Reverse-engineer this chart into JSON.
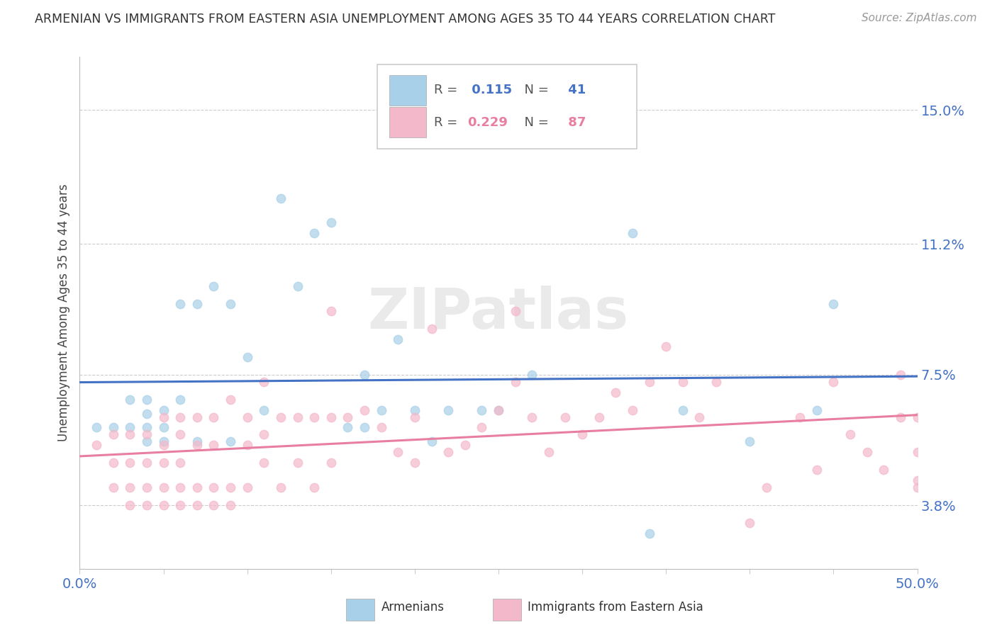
{
  "title": "ARMENIAN VS IMMIGRANTS FROM EASTERN ASIA UNEMPLOYMENT AMONG AGES 35 TO 44 YEARS CORRELATION CHART",
  "source": "Source: ZipAtlas.com",
  "ylabel": "Unemployment Among Ages 35 to 44 years",
  "xlim": [
    0.0,
    0.5
  ],
  "ylim": [
    0.02,
    0.165
  ],
  "yticks": [
    0.038,
    0.075,
    0.112,
    0.15
  ],
  "ytick_labels": [
    "3.8%",
    "7.5%",
    "11.2%",
    "15.0%"
  ],
  "r_armenian": 0.115,
  "n_armenian": 41,
  "r_eastern_asia": 0.229,
  "n_eastern_asia": 87,
  "color_armenian": "#a8d0e8",
  "color_eastern_asia": "#f4b8cb",
  "line_color_armenian": "#4472c4",
  "line_color_eastern_asia": "#e87fa0",
  "watermark": "ZIPatlas",
  "background_color": "#ffffff",
  "armenian_x": [
    0.01,
    0.02,
    0.03,
    0.03,
    0.04,
    0.04,
    0.04,
    0.04,
    0.05,
    0.05,
    0.05,
    0.06,
    0.06,
    0.07,
    0.07,
    0.08,
    0.09,
    0.09,
    0.1,
    0.11,
    0.12,
    0.13,
    0.14,
    0.15,
    0.16,
    0.17,
    0.17,
    0.18,
    0.19,
    0.2,
    0.21,
    0.22,
    0.24,
    0.25,
    0.27,
    0.33,
    0.34,
    0.36,
    0.4,
    0.44,
    0.45
  ],
  "armenian_y": [
    0.06,
    0.06,
    0.06,
    0.068,
    0.056,
    0.06,
    0.064,
    0.068,
    0.056,
    0.06,
    0.065,
    0.068,
    0.095,
    0.056,
    0.095,
    0.1,
    0.095,
    0.056,
    0.08,
    0.065,
    0.125,
    0.1,
    0.115,
    0.118,
    0.06,
    0.06,
    0.075,
    0.065,
    0.085,
    0.065,
    0.056,
    0.065,
    0.065,
    0.065,
    0.075,
    0.115,
    0.03,
    0.065,
    0.056,
    0.065,
    0.095
  ],
  "eastern_asia_x": [
    0.01,
    0.02,
    0.02,
    0.02,
    0.03,
    0.03,
    0.03,
    0.03,
    0.04,
    0.04,
    0.04,
    0.04,
    0.05,
    0.05,
    0.05,
    0.05,
    0.05,
    0.06,
    0.06,
    0.06,
    0.06,
    0.06,
    0.07,
    0.07,
    0.07,
    0.07,
    0.08,
    0.08,
    0.08,
    0.08,
    0.09,
    0.09,
    0.09,
    0.1,
    0.1,
    0.1,
    0.11,
    0.11,
    0.11,
    0.12,
    0.12,
    0.13,
    0.13,
    0.14,
    0.14,
    0.15,
    0.15,
    0.15,
    0.16,
    0.17,
    0.18,
    0.19,
    0.2,
    0.2,
    0.21,
    0.22,
    0.23,
    0.24,
    0.25,
    0.26,
    0.26,
    0.27,
    0.28,
    0.29,
    0.3,
    0.31,
    0.32,
    0.33,
    0.34,
    0.35,
    0.36,
    0.37,
    0.38,
    0.4,
    0.41,
    0.43,
    0.44,
    0.45,
    0.46,
    0.47,
    0.48,
    0.49,
    0.49,
    0.5,
    0.5,
    0.5,
    0.5
  ],
  "eastern_asia_y": [
    0.055,
    0.043,
    0.05,
    0.058,
    0.038,
    0.043,
    0.05,
    0.058,
    0.038,
    0.043,
    0.05,
    0.058,
    0.038,
    0.043,
    0.05,
    0.055,
    0.063,
    0.038,
    0.043,
    0.05,
    0.058,
    0.063,
    0.038,
    0.043,
    0.055,
    0.063,
    0.038,
    0.043,
    0.055,
    0.063,
    0.038,
    0.043,
    0.068,
    0.043,
    0.055,
    0.063,
    0.05,
    0.058,
    0.073,
    0.043,
    0.063,
    0.05,
    0.063,
    0.043,
    0.063,
    0.05,
    0.063,
    0.093,
    0.063,
    0.065,
    0.06,
    0.053,
    0.05,
    0.063,
    0.088,
    0.053,
    0.055,
    0.06,
    0.065,
    0.073,
    0.093,
    0.063,
    0.053,
    0.063,
    0.058,
    0.063,
    0.07,
    0.065,
    0.073,
    0.083,
    0.073,
    0.063,
    0.073,
    0.033,
    0.043,
    0.063,
    0.048,
    0.073,
    0.058,
    0.053,
    0.048,
    0.063,
    0.075,
    0.053,
    0.063,
    0.043,
    0.045
  ]
}
